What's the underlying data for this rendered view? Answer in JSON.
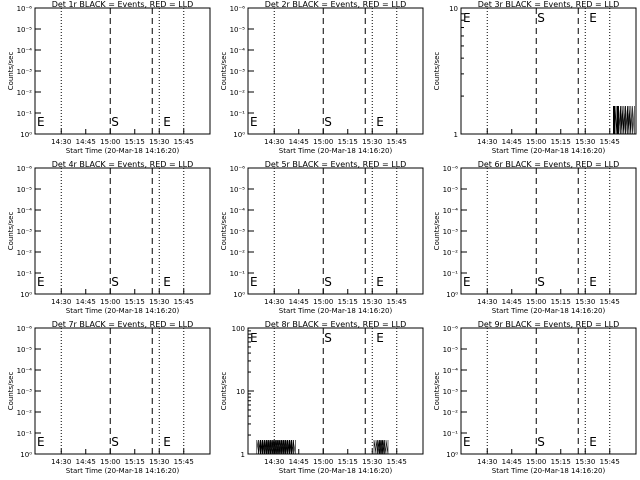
{
  "chart_data": [
    {
      "type": "line",
      "title": "Det 1r BLACK = Events, RED = LLD",
      "xlabel": "Start Time (20-Mar-18 14:16:20)",
      "ylabel": "Counts/sec",
      "y_scale": "log",
      "ylim": [
        1,
        1e-06
      ],
      "ytick_labels": [
        "10⁰",
        "10⁻¹",
        "10⁻²",
        "10⁻³",
        "10⁻⁴",
        "10⁻⁵",
        "10⁻⁶"
      ],
      "xtick_labels": [
        "14:30",
        "14:45",
        "15:00",
        "15:15",
        "15:30",
        "15:45"
      ],
      "markers": {
        "E1": "E",
        "S": "S",
        "E2": "E"
      },
      "series": [
        {
          "values": []
        }
      ]
    },
    {
      "type": "line",
      "title": "Det 2r BLACK = Events, RED = LLD",
      "xlabel": "Start Time (20-Mar-18 14:16:20)",
      "ylabel": "Counts/sec",
      "y_scale": "log",
      "ylim": [
        1,
        1e-06
      ],
      "ytick_labels": [
        "10⁰",
        "10⁻¹",
        "10⁻²",
        "10⁻³",
        "10⁻⁴",
        "10⁻⁵",
        "10⁻⁶"
      ],
      "xtick_labels": [
        "14:30",
        "14:45",
        "15:00",
        "15:15",
        "15:30",
        "15:45"
      ],
      "markers": {
        "E1": "E",
        "S": "S",
        "E2": "E"
      },
      "series": [
        {
          "values": []
        }
      ]
    },
    {
      "type": "line",
      "title": "Det 3r BLACK = Events, RED = LLD",
      "xlabel": "Start Time (20-Mar-18 14:16:20)",
      "ylabel": "Counts/sec",
      "y_scale": "log",
      "ylim": [
        1,
        10
      ],
      "ytick_labels": [
        "1",
        "10"
      ],
      "ytick_values": [
        1,
        10
      ],
      "xtick_labels": [
        "14:30",
        "14:45",
        "15:00",
        "15:15",
        "15:30",
        "15:45"
      ],
      "markers": {
        "E1": "E",
        "S": "S",
        "E2": "E"
      },
      "series": [
        {
          "values": [
            [
              0.87,
              0.91
            ],
            [
              0.89,
              0.93
            ],
            [
              0.91,
              0.95
            ],
            [
              0.93,
              0.97
            ],
            [
              0.95,
              0.99
            ],
            [
              0.87,
              0.88
            ],
            [
              0.89,
              0.9
            ]
          ]
        }
      ]
    },
    {
      "type": "line",
      "title": "Det 4r BLACK = Events, RED = LLD",
      "xlabel": "Start Time (20-Mar-18 14:16:20)",
      "ylabel": "Counts/sec",
      "y_scale": "log",
      "ylim": [
        1,
        1e-06
      ],
      "ytick_labels": [
        "10⁰",
        "10⁻¹",
        "10⁻²",
        "10⁻³",
        "10⁻⁴",
        "10⁻⁵",
        "10⁻⁶"
      ],
      "xtick_labels": [
        "14:30",
        "14:45",
        "15:00",
        "15:15",
        "15:30",
        "15:45"
      ],
      "markers": {
        "E1": "E",
        "S": "S",
        "E2": "E"
      },
      "series": [
        {
          "values": []
        }
      ]
    },
    {
      "type": "line",
      "title": "Det 5r BLACK = Events, RED = LLD",
      "xlabel": "Start Time (20-Mar-18 14:16:20)",
      "ylabel": "Counts/sec",
      "y_scale": "log",
      "ylim": [
        1,
        1e-06
      ],
      "ytick_labels": [
        "10⁰",
        "10⁻¹",
        "10⁻²",
        "10⁻³",
        "10⁻⁴",
        "10⁻⁵",
        "10⁻⁶"
      ],
      "xtick_labels": [
        "14:30",
        "14:45",
        "15:00",
        "15:15",
        "15:30",
        "15:45"
      ],
      "markers": {
        "E1": "E",
        "S": "S",
        "E2": "E"
      },
      "series": [
        {
          "values": []
        }
      ]
    },
    {
      "type": "line",
      "title": "Det 6r BLACK = Events, RED = LLD",
      "xlabel": "Start Time (20-Mar-18 14:16:20)",
      "ylabel": "Counts/sec",
      "y_scale": "log",
      "ylim": [
        1,
        1e-06
      ],
      "ytick_labels": [
        "10⁰",
        "10⁻¹",
        "10⁻²",
        "10⁻³",
        "10⁻⁴",
        "10⁻⁵",
        "10⁻⁶"
      ],
      "xtick_labels": [
        "14:30",
        "14:45",
        "15:00",
        "15:15",
        "15:30",
        "15:45"
      ],
      "markers": {
        "E1": "E",
        "S": "S",
        "E2": "E"
      },
      "series": [
        {
          "values": []
        }
      ]
    },
    {
      "type": "line",
      "title": "Det 7r BLACK = Events, RED = LLD",
      "xlabel": "Start Time (20-Mar-18 14:16:20)",
      "ylabel": "Counts/sec",
      "y_scale": "log",
      "ylim": [
        1,
        1e-06
      ],
      "ytick_labels": [
        "10⁰",
        "10⁻¹",
        "10⁻²",
        "10⁻³",
        "10⁻⁴",
        "10⁻⁵",
        "10⁻⁶"
      ],
      "xtick_labels": [
        "14:30",
        "14:45",
        "15:00",
        "15:15",
        "15:30",
        "15:45"
      ],
      "markers": {
        "E1": "E",
        "S": "S",
        "E2": "E"
      },
      "series": [
        {
          "values": []
        }
      ]
    },
    {
      "type": "line",
      "title": "Det 8r BLACK = Events, RED = LLD",
      "xlabel": "Start Time (20-Mar-18 14:16:20)",
      "ylabel": "Counts/sec",
      "y_scale": "log",
      "ylim": [
        1,
        100
      ],
      "ytick_labels": [
        "1",
        "10",
        "100"
      ],
      "ytick_values": [
        1,
        10,
        100
      ],
      "xtick_labels": [
        "14:30",
        "14:45",
        "15:00",
        "15:15",
        "15:30",
        "15:45"
      ],
      "markers": {
        "E1": "E",
        "S": "S",
        "E2": "E"
      },
      "series": [
        {
          "values": [
            [
              0.05,
              0.27
            ],
            [
              0.06,
              0.26
            ],
            [
              0.07,
              0.25
            ],
            [
              0.72,
              0.8
            ],
            [
              0.74,
              0.78
            ]
          ]
        }
      ]
    },
    {
      "type": "line",
      "title": "Det 9r BLACK = Events, RED = LLD",
      "xlabel": "Start Time (20-Mar-18 14:16:20)",
      "ylabel": "Counts/sec",
      "y_scale": "log",
      "ylim": [
        1,
        1e-06
      ],
      "ytick_labels": [
        "10⁰",
        "10⁻¹",
        "10⁻²",
        "10⁻³",
        "10⁻⁴",
        "10⁻⁵",
        "10⁻⁶"
      ],
      "xtick_labels": [
        "14:30",
        "14:45",
        "15:00",
        "15:15",
        "15:30",
        "15:45"
      ],
      "markers": {
        "E1": "E",
        "S": "S",
        "E2": "E"
      },
      "series": [
        {
          "values": []
        }
      ]
    }
  ]
}
